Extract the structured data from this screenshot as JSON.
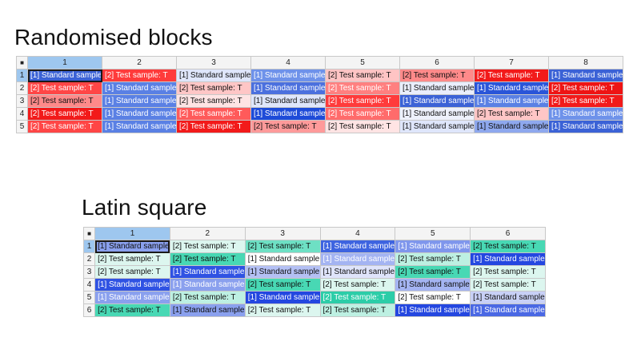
{
  "sections": [
    {
      "title": "Randomised blocks",
      "corner": "■",
      "columns": [
        "1",
        "2",
        "3",
        "4",
        "5",
        "6",
        "7",
        "8"
      ],
      "rows": [
        {
          "label": "1",
          "cells": [
            {
              "text": "[1] Standard sample: S",
              "bg": "#3b62d6",
              "fg": "#ffffff"
            },
            {
              "text": "[2] Test sample: T",
              "bg": "#ff3b3b",
              "fg": "#ffffff"
            },
            {
              "text": "[1] Standard sample: S",
              "bg": "#dfe6fb",
              "fg": "#111111"
            },
            {
              "text": "[1] Standard sample: S",
              "bg": "#6e92ea",
              "fg": "#ffffff"
            },
            {
              "text": "[2] Test sample: T",
              "bg": "#ffc4c4",
              "fg": "#111111"
            },
            {
              "text": "[2] Test sample: T",
              "bg": "#ff8a8a",
              "fg": "#111111"
            },
            {
              "text": "[2] Test sample: T",
              "bg": "#f21a1a",
              "fg": "#ffffff"
            },
            {
              "text": "[1] Standard sample: S",
              "bg": "#3b62d6",
              "fg": "#ffffff"
            }
          ]
        },
        {
          "label": "2",
          "cells": [
            {
              "text": "[2] Test sample: T",
              "bg": "#ff4646",
              "fg": "#ffffff"
            },
            {
              "text": "[1] Standard sample: S",
              "bg": "#5a80e4",
              "fg": "#ffffff"
            },
            {
              "text": "[2] Test sample: T",
              "bg": "#ffc6c6",
              "fg": "#111111"
            },
            {
              "text": "[1] Standard sample: S",
              "bg": "#4b70de",
              "fg": "#ffffff"
            },
            {
              "text": "[2] Test sample: T",
              "bg": "#ff8080",
              "fg": "#ffffff"
            },
            {
              "text": "[1] Standard sample: S",
              "bg": "#eaeefc",
              "fg": "#111111"
            },
            {
              "text": "[1] Standard sample: S",
              "bg": "#2a55d8",
              "fg": "#ffffff"
            },
            {
              "text": "[2] Test sample: T",
              "bg": "#ee1414",
              "fg": "#ffffff"
            }
          ]
        },
        {
          "label": "3",
          "cells": [
            {
              "text": "[2] Test sample: T",
              "bg": "#ff8a8a",
              "fg": "#111111"
            },
            {
              "text": "[1] Standard sample: S",
              "bg": "#5a80e4",
              "fg": "#ffffff"
            },
            {
              "text": "[2] Test sample: T",
              "bg": "#ffe4e4",
              "fg": "#111111"
            },
            {
              "text": "[1] Standard sample: S",
              "bg": "#dfe6fb",
              "fg": "#111111"
            },
            {
              "text": "[2] Test sample: T",
              "bg": "#ff3b3b",
              "fg": "#ffffff"
            },
            {
              "text": "[1] Standard sample: S",
              "bg": "#3b62d6",
              "fg": "#ffffff"
            },
            {
              "text": "[1] Standard sample: S",
              "bg": "#5a80e4",
              "fg": "#ffffff"
            },
            {
              "text": "[2] Test sample: T",
              "bg": "#f21a1a",
              "fg": "#ffffff"
            }
          ]
        },
        {
          "label": "4",
          "cells": [
            {
              "text": "[2] Test sample: T",
              "bg": "#f21a1a",
              "fg": "#ffffff"
            },
            {
              "text": "[1] Standard sample: S",
              "bg": "#5a80e4",
              "fg": "#ffffff"
            },
            {
              "text": "[2] Test sample: T",
              "bg": "#ff5a5a",
              "fg": "#ffffff"
            },
            {
              "text": "[1] Standard sample: S",
              "bg": "#1e4bd8",
              "fg": "#ffffff"
            },
            {
              "text": "[2] Test sample: T",
              "bg": "#ff6b6b",
              "fg": "#ffffff"
            },
            {
              "text": "[1] Standard sample: S",
              "bg": "#eef1fc",
              "fg": "#111111"
            },
            {
              "text": "[2] Test sample: T",
              "bg": "#ffc6c6",
              "fg": "#111111"
            },
            {
              "text": "[1] Standard sample: S",
              "bg": "#6e92ea",
              "fg": "#ffffff"
            }
          ]
        },
        {
          "label": "5",
          "cells": [
            {
              "text": "[2] Test sample: T",
              "bg": "#ff4646",
              "fg": "#ffffff"
            },
            {
              "text": "[1] Standard sample: S",
              "bg": "#5a80e4",
              "fg": "#ffffff"
            },
            {
              "text": "[2] Test sample: T",
              "bg": "#f21a1a",
              "fg": "#ffffff"
            },
            {
              "text": "[2] Test sample: T",
              "bg": "#ff9a9a",
              "fg": "#111111"
            },
            {
              "text": "[2] Test sample: T",
              "bg": "#ffe4e4",
              "fg": "#111111"
            },
            {
              "text": "[1] Standard sample: S",
              "bg": "#dfe6fb",
              "fg": "#111111"
            },
            {
              "text": "[1] Standard sample: S",
              "bg": "#8ea8ee",
              "fg": "#111111"
            },
            {
              "text": "[1] Standard sample: S",
              "bg": "#3b62d6",
              "fg": "#ffffff"
            }
          ]
        }
      ]
    },
    {
      "title": "Latin square",
      "corner": "■",
      "columns": [
        "1",
        "2",
        "3",
        "4",
        "5",
        "6"
      ],
      "rows": [
        {
          "label": "1",
          "cells": [
            {
              "text": "[1] Standard sample: S",
              "bg": "#8aa0ee",
              "fg": "#111111"
            },
            {
              "text": "[2] Test sample: T",
              "bg": "#dcf6ef",
              "fg": "#111111"
            },
            {
              "text": "[2] Test sample: T",
              "bg": "#6ee0c4",
              "fg": "#111111"
            },
            {
              "text": "[1] Standard sample: S",
              "bg": "#3e64e0",
              "fg": "#ffffff"
            },
            {
              "text": "[1] Standard sample: S",
              "bg": "#7f96ec",
              "fg": "#ffffff"
            },
            {
              "text": "[2] Test sample: T",
              "bg": "#48d8b4",
              "fg": "#111111"
            }
          ]
        },
        {
          "label": "2",
          "cells": [
            {
              "text": "[2] Test sample: T",
              "bg": "#dcf6ef",
              "fg": "#111111"
            },
            {
              "text": "[2] Test sample: T",
              "bg": "#48d8b4",
              "fg": "#111111"
            },
            {
              "text": "[1] Standard sample: S",
              "bg": "#ffffff",
              "fg": "#111111"
            },
            {
              "text": "[1] Standard sample: S",
              "bg": "#a4b4f2",
              "fg": "#ffffff"
            },
            {
              "text": "[2] Test sample: T",
              "bg": "#bdf0e2",
              "fg": "#111111"
            },
            {
              "text": "[1] Standard sample: S",
              "bg": "#2447e0",
              "fg": "#ffffff"
            }
          ]
        },
        {
          "label": "3",
          "cells": [
            {
              "text": "[2] Test sample: T",
              "bg": "#dcf6ef",
              "fg": "#111111"
            },
            {
              "text": "[1] Standard sample: S",
              "bg": "#2f52e3",
              "fg": "#ffffff"
            },
            {
              "text": "[1] Standard sample: S",
              "bg": "#b4c0f4",
              "fg": "#111111"
            },
            {
              "text": "[1] Standard sample: S",
              "bg": "#dfe4fb",
              "fg": "#111111"
            },
            {
              "text": "[2] Test sample: T",
              "bg": "#48d8b4",
              "fg": "#111111"
            },
            {
              "text": "[2] Test sample: T",
              "bg": "#dcf6ef",
              "fg": "#111111"
            }
          ]
        },
        {
          "label": "4",
          "cells": [
            {
              "text": "[1] Standard sample: S",
              "bg": "#2f52e3",
              "fg": "#ffffff"
            },
            {
              "text": "[1] Standard sample: S",
              "bg": "#8aa0ee",
              "fg": "#ffffff"
            },
            {
              "text": "[2] Test sample: T",
              "bg": "#48d8b4",
              "fg": "#111111"
            },
            {
              "text": "[2] Test sample: T",
              "bg": "#dcf6ef",
              "fg": "#111111"
            },
            {
              "text": "[1] Standard sample: S",
              "bg": "#a4b4f2",
              "fg": "#111111"
            },
            {
              "text": "[2] Test sample: T",
              "bg": "#dcf6ef",
              "fg": "#111111"
            }
          ]
        },
        {
          "label": "5",
          "cells": [
            {
              "text": "[1] Standard sample: S",
              "bg": "#8aa0ee",
              "fg": "#ffffff"
            },
            {
              "text": "[2] Test sample: T",
              "bg": "#bdf0e2",
              "fg": "#111111"
            },
            {
              "text": "[1] Standard sample: S",
              "bg": "#2447e0",
              "fg": "#ffffff"
            },
            {
              "text": "[2] Test sample: T",
              "bg": "#2ccda8",
              "fg": "#ffffff"
            },
            {
              "text": "[2] Test sample: T",
              "bg": "#ffffff",
              "fg": "#111111"
            },
            {
              "text": "[1] Standard sample: S",
              "bg": "#c8d0f6",
              "fg": "#111111"
            }
          ]
        },
        {
          "label": "6",
          "cells": [
            {
              "text": "[2] Test sample: T",
              "bg": "#48d8b4",
              "fg": "#111111"
            },
            {
              "text": "[1] Standard sample: S",
              "bg": "#8aa0ee",
              "fg": "#111111"
            },
            {
              "text": "[2] Test sample: T",
              "bg": "#dcf6ef",
              "fg": "#111111"
            },
            {
              "text": "[2] Test sample: T",
              "bg": "#bdf0e2",
              "fg": "#111111"
            },
            {
              "text": "[1] Standard sample: S",
              "bg": "#2447e0",
              "fg": "#ffffff"
            },
            {
              "text": "[1] Standard sample: S",
              "bg": "#4a68e4",
              "fg": "#ffffff"
            }
          ]
        }
      ]
    }
  ]
}
